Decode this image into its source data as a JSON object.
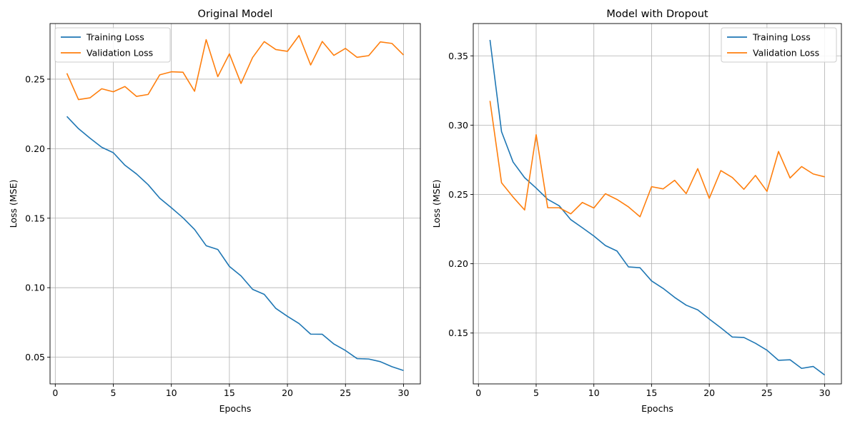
{
  "chart_data": [
    {
      "type": "line",
      "title": "Original Model",
      "xlabel": "Epochs",
      "ylabel": "Loss (MSE)",
      "xlim": [
        -0.45,
        31.45
      ],
      "ylim": [
        0.0308,
        0.29
      ],
      "xticks": [
        0,
        5,
        10,
        15,
        20,
        25,
        30
      ],
      "xtick_labels": [
        "0",
        "5",
        "10",
        "15",
        "20",
        "25",
        "30"
      ],
      "yticks": [
        0.05,
        0.1,
        0.15,
        0.2,
        0.25
      ],
      "ytick_labels": [
        "0.05",
        "0.10",
        "0.15",
        "0.20",
        "0.25"
      ],
      "grid": true,
      "legend_position": "top-left",
      "x": [
        1,
        2,
        3,
        4,
        5,
        6,
        7,
        8,
        9,
        10,
        11,
        12,
        13,
        14,
        15,
        16,
        17,
        18,
        19,
        20,
        21,
        22,
        23,
        24,
        25,
        26,
        27,
        28,
        29,
        30
      ],
      "series": [
        {
          "name": "Training Loss",
          "color": "#1f77b4",
          "values": [
            0.2232,
            0.2144,
            0.2075,
            0.201,
            0.1971,
            0.1881,
            0.1818,
            0.1741,
            0.1644,
            0.1575,
            0.1503,
            0.1419,
            0.1302,
            0.1275,
            0.1153,
            0.1085,
            0.0988,
            0.0952,
            0.0851,
            0.0794,
            0.0742,
            0.0666,
            0.0665,
            0.0595,
            0.0548,
            0.049,
            0.0487,
            0.0468,
            0.0432,
            0.0404
          ]
        },
        {
          "name": "Validation Loss",
          "color": "#ff7f0e",
          "values": [
            0.2542,
            0.2353,
            0.2366,
            0.2431,
            0.2409,
            0.2447,
            0.2376,
            0.239,
            0.2531,
            0.2553,
            0.255,
            0.2413,
            0.2784,
            0.2518,
            0.2682,
            0.2469,
            0.2656,
            0.277,
            0.2713,
            0.27,
            0.2814,
            0.2602,
            0.2771,
            0.2671,
            0.2721,
            0.2657,
            0.2669,
            0.2768,
            0.2757,
            0.2674
          ]
        }
      ]
    },
    {
      "type": "line",
      "title": "Model with Dropout",
      "xlabel": "Epochs",
      "ylabel": "Loss (MSE)",
      "xlim": [
        -0.45,
        31.45
      ],
      "ylim": [
        0.1133,
        0.3733
      ],
      "xticks": [
        0,
        5,
        10,
        15,
        20,
        25,
        30
      ],
      "xtick_labels": [
        "0",
        "5",
        "10",
        "15",
        "20",
        "25",
        "30"
      ],
      "yticks": [
        0.15,
        0.2,
        0.25,
        0.3,
        0.35
      ],
      "ytick_labels": [
        "0.15",
        "0.20",
        "0.25",
        "0.30",
        "0.35"
      ],
      "grid": true,
      "legend_position": "top-right",
      "x": [
        1,
        2,
        3,
        4,
        5,
        6,
        7,
        8,
        9,
        10,
        11,
        12,
        13,
        14,
        15,
        16,
        17,
        18,
        19,
        20,
        21,
        22,
        23,
        24,
        25,
        26,
        27,
        28,
        29,
        30
      ],
      "series": [
        {
          "name": "Training Loss",
          "color": "#1f77b4",
          "values": [
            0.3615,
            0.2953,
            0.2734,
            0.2621,
            0.2546,
            0.2465,
            0.2418,
            0.2318,
            0.226,
            0.22,
            0.2131,
            0.2092,
            0.1977,
            0.1971,
            0.1876,
            0.1822,
            0.1757,
            0.1701,
            0.1667,
            0.1601,
            0.1538,
            0.1471,
            0.1468,
            0.1426,
            0.1376,
            0.1303,
            0.1307,
            0.1245,
            0.1259,
            0.1197
          ]
        },
        {
          "name": "Validation Loss",
          "color": "#ff7f0e",
          "values": [
            0.3175,
            0.2584,
            0.2481,
            0.2388,
            0.2931,
            0.2404,
            0.2404,
            0.236,
            0.2442,
            0.2402,
            0.2505,
            0.2464,
            0.241,
            0.2339,
            0.2556,
            0.254,
            0.2602,
            0.2506,
            0.2686,
            0.2472,
            0.2672,
            0.2622,
            0.2537,
            0.2637,
            0.2522,
            0.281,
            0.2619,
            0.2701,
            0.2648,
            0.2627
          ]
        }
      ]
    }
  ]
}
